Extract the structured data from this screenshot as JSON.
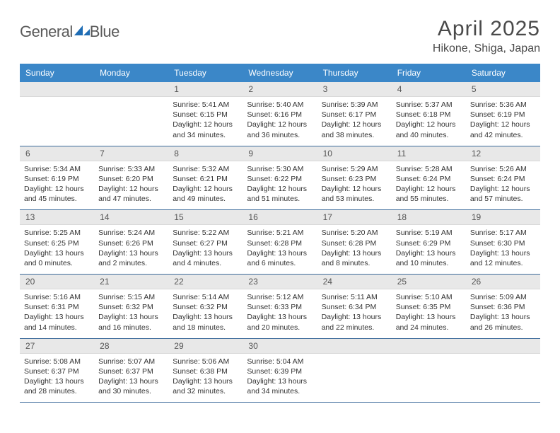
{
  "brand": {
    "name": "GeneralBlue",
    "part1": "General",
    "part2": "Blue",
    "logo_color": "#1f6db5",
    "text_color": "#5a5a5a"
  },
  "title": {
    "month": "April 2025",
    "location": "Hikone, Shiga, Japan"
  },
  "colors": {
    "header_bg": "#3b87c8",
    "header_fg": "#ffffff",
    "daynum_bg": "#e8e8e8",
    "daynum_fg": "#555555",
    "border": "#3b6a9a"
  },
  "daynames": [
    "Sunday",
    "Monday",
    "Tuesday",
    "Wednesday",
    "Thursday",
    "Friday",
    "Saturday"
  ],
  "labels": {
    "sunrise": "Sunrise:",
    "sunset": "Sunset:",
    "daylight": "Daylight:"
  },
  "weeks": [
    [
      null,
      null,
      {
        "n": "1",
        "sr": "5:41 AM",
        "ss": "6:15 PM",
        "dl": "12 hours and 34 minutes."
      },
      {
        "n": "2",
        "sr": "5:40 AM",
        "ss": "6:16 PM",
        "dl": "12 hours and 36 minutes."
      },
      {
        "n": "3",
        "sr": "5:39 AM",
        "ss": "6:17 PM",
        "dl": "12 hours and 38 minutes."
      },
      {
        "n": "4",
        "sr": "5:37 AM",
        "ss": "6:18 PM",
        "dl": "12 hours and 40 minutes."
      },
      {
        "n": "5",
        "sr": "5:36 AM",
        "ss": "6:19 PM",
        "dl": "12 hours and 42 minutes."
      }
    ],
    [
      {
        "n": "6",
        "sr": "5:34 AM",
        "ss": "6:19 PM",
        "dl": "12 hours and 45 minutes."
      },
      {
        "n": "7",
        "sr": "5:33 AM",
        "ss": "6:20 PM",
        "dl": "12 hours and 47 minutes."
      },
      {
        "n": "8",
        "sr": "5:32 AM",
        "ss": "6:21 PM",
        "dl": "12 hours and 49 minutes."
      },
      {
        "n": "9",
        "sr": "5:30 AM",
        "ss": "6:22 PM",
        "dl": "12 hours and 51 minutes."
      },
      {
        "n": "10",
        "sr": "5:29 AM",
        "ss": "6:23 PM",
        "dl": "12 hours and 53 minutes."
      },
      {
        "n": "11",
        "sr": "5:28 AM",
        "ss": "6:24 PM",
        "dl": "12 hours and 55 minutes."
      },
      {
        "n": "12",
        "sr": "5:26 AM",
        "ss": "6:24 PM",
        "dl": "12 hours and 57 minutes."
      }
    ],
    [
      {
        "n": "13",
        "sr": "5:25 AM",
        "ss": "6:25 PM",
        "dl": "13 hours and 0 minutes."
      },
      {
        "n": "14",
        "sr": "5:24 AM",
        "ss": "6:26 PM",
        "dl": "13 hours and 2 minutes."
      },
      {
        "n": "15",
        "sr": "5:22 AM",
        "ss": "6:27 PM",
        "dl": "13 hours and 4 minutes."
      },
      {
        "n": "16",
        "sr": "5:21 AM",
        "ss": "6:28 PM",
        "dl": "13 hours and 6 minutes."
      },
      {
        "n": "17",
        "sr": "5:20 AM",
        "ss": "6:28 PM",
        "dl": "13 hours and 8 minutes."
      },
      {
        "n": "18",
        "sr": "5:19 AM",
        "ss": "6:29 PM",
        "dl": "13 hours and 10 minutes."
      },
      {
        "n": "19",
        "sr": "5:17 AM",
        "ss": "6:30 PM",
        "dl": "13 hours and 12 minutes."
      }
    ],
    [
      {
        "n": "20",
        "sr": "5:16 AM",
        "ss": "6:31 PM",
        "dl": "13 hours and 14 minutes."
      },
      {
        "n": "21",
        "sr": "5:15 AM",
        "ss": "6:32 PM",
        "dl": "13 hours and 16 minutes."
      },
      {
        "n": "22",
        "sr": "5:14 AM",
        "ss": "6:32 PM",
        "dl": "13 hours and 18 minutes."
      },
      {
        "n": "23",
        "sr": "5:12 AM",
        "ss": "6:33 PM",
        "dl": "13 hours and 20 minutes."
      },
      {
        "n": "24",
        "sr": "5:11 AM",
        "ss": "6:34 PM",
        "dl": "13 hours and 22 minutes."
      },
      {
        "n": "25",
        "sr": "5:10 AM",
        "ss": "6:35 PM",
        "dl": "13 hours and 24 minutes."
      },
      {
        "n": "26",
        "sr": "5:09 AM",
        "ss": "6:36 PM",
        "dl": "13 hours and 26 minutes."
      }
    ],
    [
      {
        "n": "27",
        "sr": "5:08 AM",
        "ss": "6:37 PM",
        "dl": "13 hours and 28 minutes."
      },
      {
        "n": "28",
        "sr": "5:07 AM",
        "ss": "6:37 PM",
        "dl": "13 hours and 30 minutes."
      },
      {
        "n": "29",
        "sr": "5:06 AM",
        "ss": "6:38 PM",
        "dl": "13 hours and 32 minutes."
      },
      {
        "n": "30",
        "sr": "5:04 AM",
        "ss": "6:39 PM",
        "dl": "13 hours and 34 minutes."
      },
      null,
      null,
      null
    ]
  ]
}
